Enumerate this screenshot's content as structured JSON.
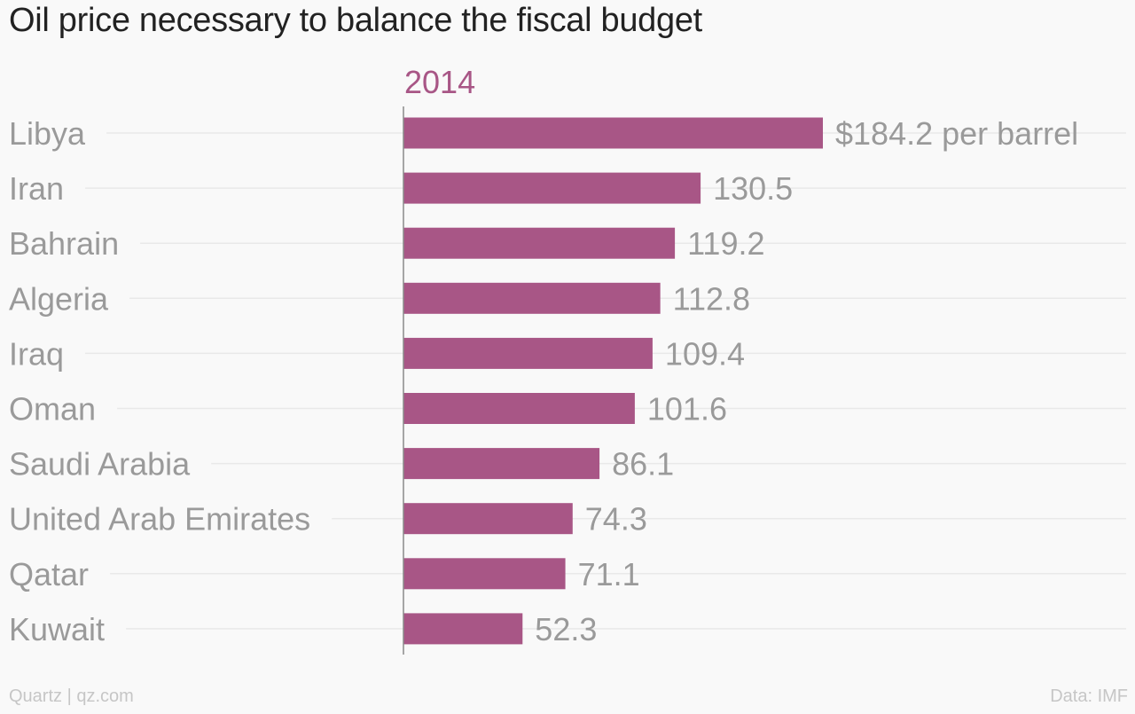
{
  "chart_data": {
    "type": "bar",
    "orientation": "horizontal",
    "title": "Oil price necessary to balance the fiscal budget",
    "series": [
      {
        "name": "2014",
        "values": [
          184.2,
          130.5,
          119.2,
          112.8,
          109.4,
          101.6,
          86.1,
          74.3,
          71.1,
          52.3
        ]
      }
    ],
    "categories": [
      "Libya",
      "Iran",
      "Bahrain",
      "Algeria",
      "Iraq",
      "Oman",
      "Saudi Arabia",
      "United Arab Emirates",
      "Qatar",
      "Kuwait"
    ],
    "value_labels": [
      "$184.2 per barrel",
      "130.5",
      "119.2",
      "112.8",
      "109.4",
      "101.6",
      "86.1",
      "74.3",
      "71.1",
      "52.3"
    ],
    "xlabel": "",
    "ylabel": "",
    "xlim": [
      0,
      184.2
    ],
    "grid": true,
    "colors": {
      "bar": "#a85686",
      "series_label": "#a85686",
      "category_text": "#9a9a9a",
      "value_text": "#9a9a9a",
      "gridline": "#e9e9e9",
      "axis": "#8a8a8a"
    }
  },
  "footer": {
    "source": "Quartz | qz.com",
    "data_credit": "Data: IMF"
  }
}
